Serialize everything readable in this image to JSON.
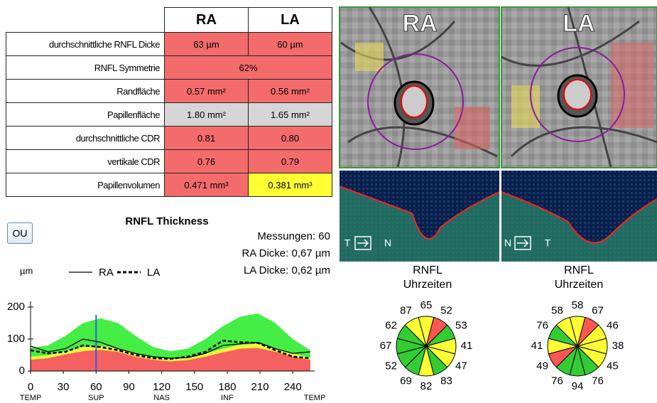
{
  "table": {
    "header": [
      "RA",
      "LA"
    ],
    "rows": [
      {
        "cells": [
          "durchschnittliche RNFL Dicke",
          "63 µm",
          "60 µm"
        ],
        "colors": [
          "#f36b6b",
          "#f36b6b"
        ]
      },
      {
        "cells": [
          "RNFL Symmetrie",
          "62%"
        ],
        "colors": [
          "#f36b6b"
        ]
      },
      {
        "cells": [
          "Randfläche",
          "0.57 mm²",
          "0.56 mm²"
        ],
        "colors": [
          "#f36b6b",
          "#f36b6b"
        ]
      },
      {
        "cells": [
          "Papillenfläche",
          "1.80 mm²",
          "1.65 mm²"
        ],
        "colors": [
          "#d6d6d6",
          "#d6d6d6"
        ]
      },
      {
        "cells": [
          "durchschnittliche CDR",
          "0.81",
          "0.80"
        ],
        "colors": [
          "#f36b6b",
          "#f36b6b"
        ]
      },
      {
        "cells": [
          "vertikale CDR",
          "0.76",
          "0.79"
        ],
        "colors": [
          "#f36b6b",
          "#f36b6b"
        ]
      },
      {
        "cells": [
          "Papillenvolumen",
          "0.471 mm³",
          "0.381 mm³"
        ],
        "colors": [
          "#f36b6b",
          "#ffff33"
        ]
      }
    ]
  },
  "button": "OU",
  "images": [
    {
      "label": "RA",
      "left": "T",
      "right": "N"
    },
    {
      "label": "LA",
      "left": "N",
      "right": "T"
    }
  ],
  "chart_data": {
    "type": "line",
    "title": "RNFL Thickness",
    "info": [
      "Messungen: 60",
      "RA Dicke: 0,67 µm",
      "LA Dicke: 0,62 µm"
    ],
    "y_label": "µm",
    "x": [
      0,
      16,
      32,
      48,
      64,
      80,
      96,
      112,
      128,
      144,
      160,
      176,
      192,
      208,
      224,
      240,
      256
    ],
    "bands": [
      {
        "color": "#44ee44",
        "values": [
          72,
          80,
          110,
          150,
          165,
          150,
          110,
          75,
          62,
          70,
          100,
          140,
          170,
          180,
          150,
          100,
          65
        ]
      },
      {
        "color": "#f5f53a",
        "values": [
          45,
          50,
          62,
          75,
          78,
          72,
          55,
          42,
          38,
          42,
          55,
          70,
          82,
          85,
          72,
          55,
          42
        ]
      },
      {
        "color": "#f56060",
        "values": [
          35,
          40,
          52,
          62,
          66,
          60,
          45,
          35,
          30,
          34,
          45,
          58,
          70,
          72,
          60,
          45,
          35
        ]
      }
    ],
    "series": [
      {
        "name": "RA",
        "color": "#000000",
        "dash": false,
        "values": [
          78,
          60,
          70,
          100,
          90,
          70,
          55,
          45,
          40,
          42,
          55,
          80,
          85,
          90,
          70,
          55,
          60
        ]
      },
      {
        "name": "LA",
        "color": "#000000",
        "dash": true,
        "values": [
          65,
          55,
          60,
          80,
          75,
          65,
          50,
          40,
          38,
          45,
          60,
          95,
          90,
          88,
          65,
          45,
          40
        ]
      }
    ],
    "cursor_x": 60,
    "cursor_color": "#3060e0",
    "xlim": [
      0,
      260
    ],
    "ylim": [
      0,
      240
    ],
    "xticks": [
      0,
      30,
      60,
      90,
      120,
      150,
      180,
      210,
      240
    ],
    "yticks": [
      0,
      100,
      200
    ],
    "x_regions": [
      {
        "value": 0,
        "label": "TEMP"
      },
      {
        "value": 60,
        "label": "SUP"
      },
      {
        "value": 120,
        "label": "NAS"
      },
      {
        "value": 180,
        "label": "INF"
      },
      {
        "value": 260,
        "label": "TEMP"
      }
    ]
  },
  "clocks": [
    {
      "title": [
        "RNFL",
        "Uhrzeiten"
      ],
      "values": [
        65,
        52,
        53,
        41,
        47,
        83,
        82,
        69,
        52,
        67,
        62,
        87
      ],
      "colors": [
        "#ffff33",
        "#ff5555",
        "#33cc33",
        "#ffff33",
        "#ffff33",
        "#33cc33",
        "#ffff33",
        "#33cc33",
        "#33cc33",
        "#33cc33",
        "#33cc33",
        "#ffff33"
      ]
    },
    {
      "title": [
        "RNFL",
        "Uhrzeiten"
      ],
      "values": [
        58,
        67,
        46,
        38,
        45,
        76,
        94,
        76,
        49,
        41,
        76,
        58
      ],
      "colors": [
        "#ffff33",
        "#ff5555",
        "#ffff33",
        "#ffff33",
        "#ffff33",
        "#33cc33",
        "#33cc33",
        "#33cc33",
        "#ff5555",
        "#ffff33",
        "#33cc33",
        "#ffff33"
      ]
    }
  ]
}
